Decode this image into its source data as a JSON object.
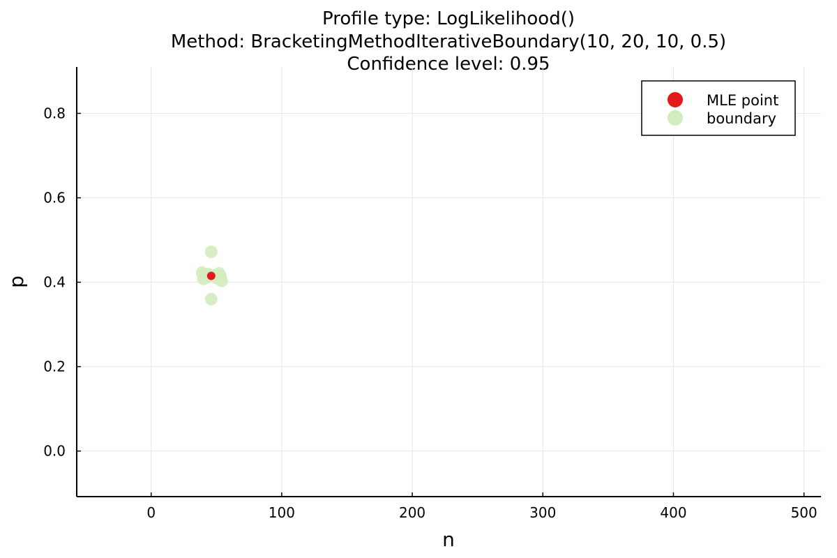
{
  "chart_data": {
    "type": "scatter",
    "title_lines": [
      "Profile type: LogLikelihood()",
      "Method: BracketingMethodIterativeBoundary(10, 20, 10, 0.5)",
      "Confidence level: 0.95"
    ],
    "xlabel": "n",
    "ylabel": "p",
    "xlim": [
      -57,
      513
    ],
    "ylim": [
      -0.108,
      0.91
    ],
    "x_ticks": [
      0,
      100,
      200,
      300,
      400,
      500
    ],
    "y_ticks": [
      0.0,
      0.2,
      0.4,
      0.6,
      0.8
    ],
    "x_tick_labels": [
      "0",
      "100",
      "200",
      "300",
      "400",
      "500"
    ],
    "y_tick_labels": [
      "0.0",
      "0.2",
      "0.4",
      "0.6",
      "0.8"
    ],
    "grid": true,
    "legend_position": "top-right",
    "series": [
      {
        "name": "MLE point",
        "color": "#e31a1c",
        "points": [
          [
            46,
            0.415
          ]
        ]
      },
      {
        "name": "boundary",
        "color": "#d3ecbf",
        "points": [
          [
            46,
            0.472
          ],
          [
            46,
            0.36
          ],
          [
            39,
            0.423
          ],
          [
            40,
            0.408
          ],
          [
            41,
            0.418
          ],
          [
            43,
            0.412
          ],
          [
            50,
            0.41
          ],
          [
            52,
            0.421
          ],
          [
            53,
            0.415
          ],
          [
            54,
            0.403
          ],
          [
            44,
            0.419
          ],
          [
            48,
            0.416
          ]
        ]
      }
    ]
  }
}
